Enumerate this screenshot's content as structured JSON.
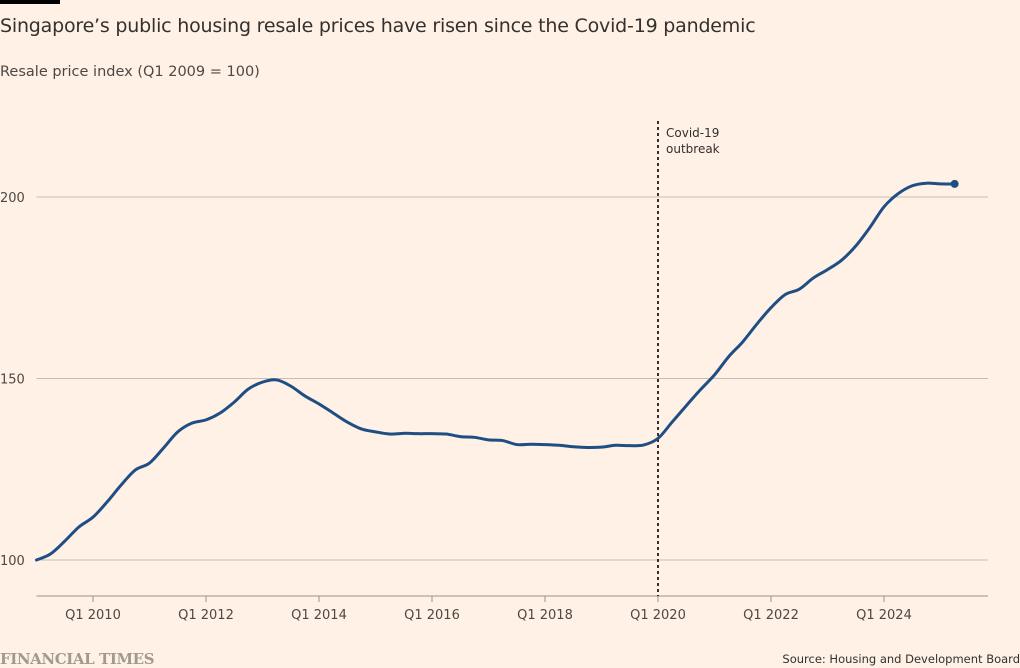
{
  "header": {
    "title": "Singapore’s public housing resale prices have risen since the Covid-19 pandemic",
    "subtitle": "Resale price index (Q1 2009 = 100)"
  },
  "footer": {
    "brand": "FINANCIAL TIMES",
    "source": "Source: Housing and Development Board"
  },
  "colors": {
    "background": "#fff1e5",
    "line": "#1f4e84",
    "gridline": "#c9bdb3",
    "axis": "#9c918a",
    "annotation_line": "#33302e"
  },
  "chart_data": {
    "type": "line",
    "title": "Singapore’s public housing resale prices have risen since the Covid-19 pandemic",
    "subtitle": "Resale price index (Q1 2009 = 100)",
    "xlabel": "",
    "ylabel": "Resale price index (Q1 2009 = 100)",
    "x_start": "Q1 2009",
    "x_end": "Q4 2025",
    "ylim": [
      90,
      222
    ],
    "yticks": [
      100,
      150,
      200
    ],
    "ytick_labels": [
      "100",
      "150",
      "200"
    ],
    "xticks": [
      4,
      12,
      20,
      28,
      36,
      44,
      52,
      60
    ],
    "xtick_labels": [
      "Q1 2010",
      "Q1 2012",
      "Q1 2014",
      "Q1 2016",
      "Q1 2018",
      "Q1 2020",
      "Q1 2022",
      "Q1 2024"
    ],
    "grid": true,
    "series": [
      {
        "name": "Resale price index",
        "x_unit": "quarters since Q1 2009",
        "values": [
          100.0,
          101.7,
          105.2,
          109.1,
          111.8,
          116.0,
          120.7,
          124.8,
          126.7,
          130.9,
          135.3,
          137.7,
          138.6,
          140.5,
          143.5,
          147.1,
          149.0,
          149.6,
          147.9,
          145.2,
          143.0,
          140.5,
          138.0,
          136.1,
          135.3,
          134.7,
          134.9,
          134.8,
          134.8,
          134.7,
          134.0,
          133.8,
          133.1,
          132.9,
          131.8,
          131.9,
          131.8,
          131.6,
          131.2,
          131.0,
          131.1,
          131.6,
          131.5,
          131.7,
          133.5,
          138.0,
          142.5,
          146.9,
          151.0,
          156.0,
          160.1,
          165.0,
          169.5,
          173.1,
          174.6,
          177.7,
          180.0,
          182.6,
          186.5,
          191.6,
          197.3,
          200.9,
          203.1,
          203.8,
          203.6,
          203.6
        ],
        "end_marker": true
      }
    ],
    "annotations": [
      {
        "x_label": "Q1 2020",
        "x_index": 44,
        "style": "dashed-vertical",
        "text": [
          "Covid-19",
          "outbreak"
        ]
      }
    ]
  }
}
